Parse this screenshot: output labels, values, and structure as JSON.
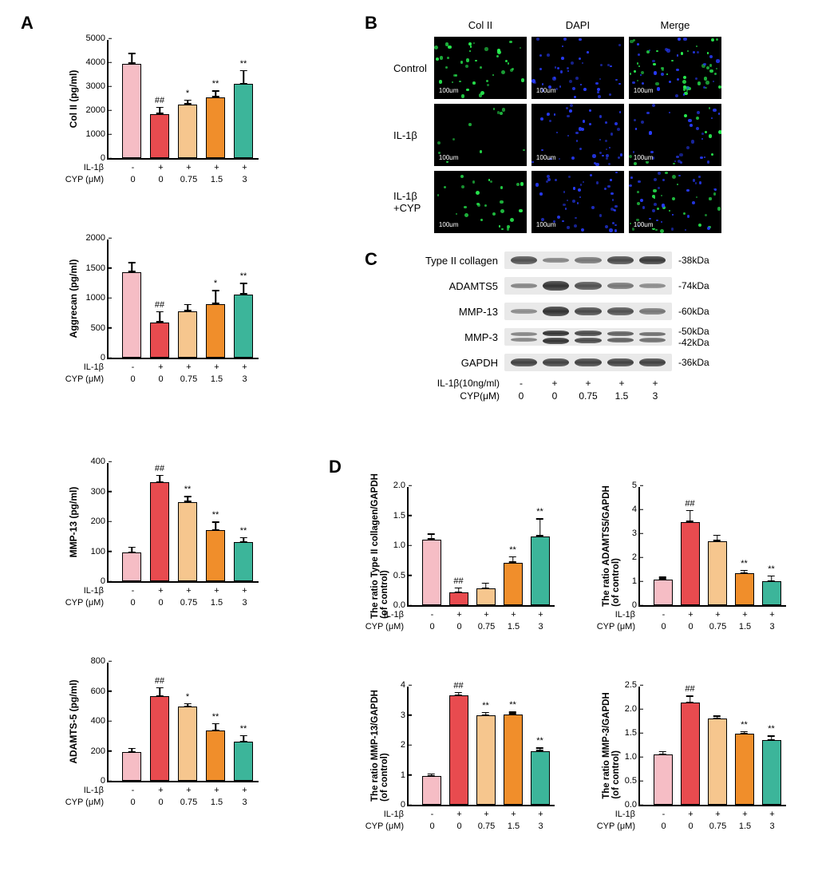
{
  "colors": {
    "pink": "#f6bdc5",
    "red": "#e84b4f",
    "peach": "#f6c68e",
    "orange": "#f08e2b",
    "green": "#3cb59a",
    "axis": "#000000",
    "bg": "#ffffff"
  },
  "panelLabels": {
    "A": "A",
    "B": "B",
    "C": "C",
    "D": "D"
  },
  "xCommon": {
    "il1b_label": "IL-1β",
    "cyp_label": "CYP (μM)",
    "cyp_label2": "CYP(μM)",
    "il1b_values": [
      "-",
      "+",
      "+",
      "+",
      "+"
    ],
    "cyp_values": [
      "0",
      "0",
      "0.75",
      "1.5",
      "3"
    ]
  },
  "A": {
    "charts": [
      {
        "id": "colii",
        "ylab": "Col II (pg/ml)",
        "ymax": 5000,
        "ystep": 1000,
        "values": [
          3950,
          1850,
          2250,
          2550,
          3100
        ],
        "errs": [
          450,
          300,
          200,
          280,
          580
        ],
        "sig": [
          "",
          "##",
          "*",
          "**",
          "**"
        ]
      },
      {
        "id": "aggrecan",
        "ylab": "Aggrecan (pg/ml)",
        "ymax": 2000,
        "ystep": 500,
        "values": [
          1430,
          590,
          780,
          900,
          1060
        ],
        "errs": [
          170,
          190,
          120,
          230,
          190
        ],
        "sig": [
          "",
          "##",
          "",
          "*",
          "**"
        ]
      },
      {
        "id": "mmp13",
        "ylab": "MMP-13 (pg/ml)",
        "ymax": 400,
        "ystep": 100,
        "values": [
          95,
          330,
          265,
          170,
          130
        ],
        "errs": [
          20,
          25,
          20,
          30,
          18
        ],
        "sig": [
          "",
          "##",
          "**",
          "**",
          "**"
        ]
      },
      {
        "id": "adamts5",
        "ylab": "ADAMTS-5 (pg/ml)",
        "ymax": 800,
        "ystep": 200,
        "values": [
          190,
          565,
          495,
          335,
          260
        ],
        "errs": [
          30,
          60,
          25,
          50,
          45
        ],
        "sig": [
          "",
          "##",
          "*",
          "**",
          "**"
        ]
      }
    ]
  },
  "B": {
    "cols": [
      "Col II",
      "DAPI",
      "Merge"
    ],
    "rows": [
      "Control",
      "IL-1β",
      "IL-1β\n+CYP"
    ],
    "scale": "100μm",
    "greenIntensity": [
      [
        0.9,
        0.0,
        0.9
      ],
      [
        0.25,
        0.0,
        0.25
      ],
      [
        0.6,
        0.0,
        0.6
      ]
    ],
    "blueIntensity": [
      [
        0.0,
        0.9,
        0.6
      ],
      [
        0.0,
        0.9,
        0.6
      ],
      [
        0.0,
        0.9,
        0.6
      ]
    ]
  },
  "C": {
    "il1b_label": "IL-1β(10ng/ml)",
    "rows": [
      {
        "name": "Type II collagen",
        "kda": "-38kDa",
        "intens": [
          0.7,
          0.35,
          0.45,
          0.75,
          0.85
        ]
      },
      {
        "name": "ADAMTS5",
        "kda": "-74kDa",
        "intens": [
          0.35,
          0.9,
          0.7,
          0.45,
          0.3
        ]
      },
      {
        "name": "MMP-13",
        "kda": "-60kDa",
        "intens": [
          0.3,
          0.9,
          0.75,
          0.7,
          0.45
        ]
      },
      {
        "name": "MMP-3",
        "kda": "-50kDa\n-42kDa",
        "intens": [
          0.35,
          0.9,
          0.75,
          0.6,
          0.5
        ],
        "double": true
      },
      {
        "name": "GAPDH",
        "kda": "-36kDa",
        "intens": [
          0.8,
          0.8,
          0.8,
          0.8,
          0.8
        ]
      }
    ]
  },
  "D": {
    "charts": [
      {
        "id": "d_colii",
        "ylab": "The ratio Type II collagen/GAPDH\n(of control)",
        "ymax": 2.0,
        "ystep": 0.5,
        "decimals": 1,
        "values": [
          1.1,
          0.21,
          0.28,
          0.71,
          1.15
        ],
        "errs": [
          0.1,
          0.09,
          0.1,
          0.11,
          0.3
        ],
        "sig": [
          "",
          "##",
          "",
          "**",
          "**"
        ]
      },
      {
        "id": "d_adamts5",
        "ylab": "The ratio  ADAMTS5/GAPDH\n(of control)",
        "ymax": 5,
        "ystep": 1,
        "decimals": 0,
        "values": [
          1.08,
          3.47,
          2.68,
          1.33,
          0.99
        ],
        "errs": [
          0.12,
          0.5,
          0.27,
          0.15,
          0.26
        ],
        "sig": [
          "",
          "##",
          "",
          "**",
          "**"
        ]
      },
      {
        "id": "d_mmp13",
        "ylab": "The ratio MMP-13/GAPDH\n(of control)",
        "ymax": 4,
        "ystep": 1,
        "decimals": 0,
        "values": [
          0.95,
          3.65,
          2.98,
          3.02,
          1.8
        ],
        "errs": [
          0.1,
          0.12,
          0.12,
          0.1,
          0.12
        ],
        "sig": [
          "",
          "##",
          "**",
          "**",
          "**"
        ]
      },
      {
        "id": "d_mmp3",
        "ylab": "The ratio MMP-3/GAPDH\n(of control)",
        "ymax": 2.5,
        "ystep": 0.5,
        "decimals": 1,
        "values": [
          1.05,
          2.13,
          1.8,
          1.48,
          1.35
        ],
        "errs": [
          0.07,
          0.15,
          0.06,
          0.06,
          0.1
        ],
        "sig": [
          "",
          "##",
          "",
          "**",
          "**"
        ]
      }
    ]
  },
  "chartGeom": {
    "A_plot_w": 190,
    "A_plot_h": 150,
    "A_bar_w": 24,
    "A_gap": 11,
    "D_plot_w": 185,
    "D_plot_h": 150,
    "D_bar_w": 24,
    "D_gap": 10
  }
}
